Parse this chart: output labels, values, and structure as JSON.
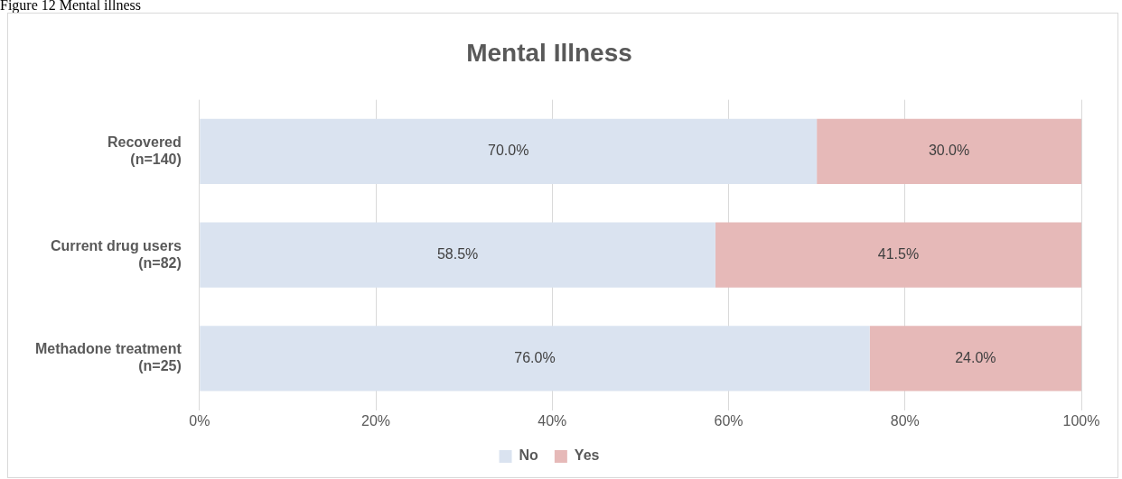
{
  "chart_data": {
    "type": "bar",
    "orientation": "horizontal",
    "stacked": true,
    "title": "Mental Illness",
    "annotations": [
      "Figure 12 Mental illness"
    ],
    "categories": [
      "Recovered\n(n=140)",
      "Current drug users\n(n=82)",
      "Methadone treatment\n(n=25)"
    ],
    "series": [
      {
        "name": "No",
        "color": "#dae3f0",
        "values": [
          70.0,
          58.5,
          76.0
        ],
        "value_labels": [
          "70.0%",
          "58.5%",
          "76.0%"
        ]
      },
      {
        "name": "Yes",
        "color": "#e6b9b8",
        "values": [
          30.0,
          41.5,
          24.0
        ],
        "value_labels": [
          "30.0%",
          "41.5%",
          "24.0%"
        ]
      }
    ],
    "xlim": [
      0,
      100
    ],
    "xticks": [
      {
        "value": 0,
        "label": "0%"
      },
      {
        "value": 20,
        "label": "20%"
      },
      {
        "value": 40,
        "label": "40%"
      },
      {
        "value": 60,
        "label": "60%"
      },
      {
        "value": 80,
        "label": "80%"
      },
      {
        "value": 100,
        "label": "100%"
      }
    ],
    "grid": "x",
    "legend": "bottom"
  }
}
